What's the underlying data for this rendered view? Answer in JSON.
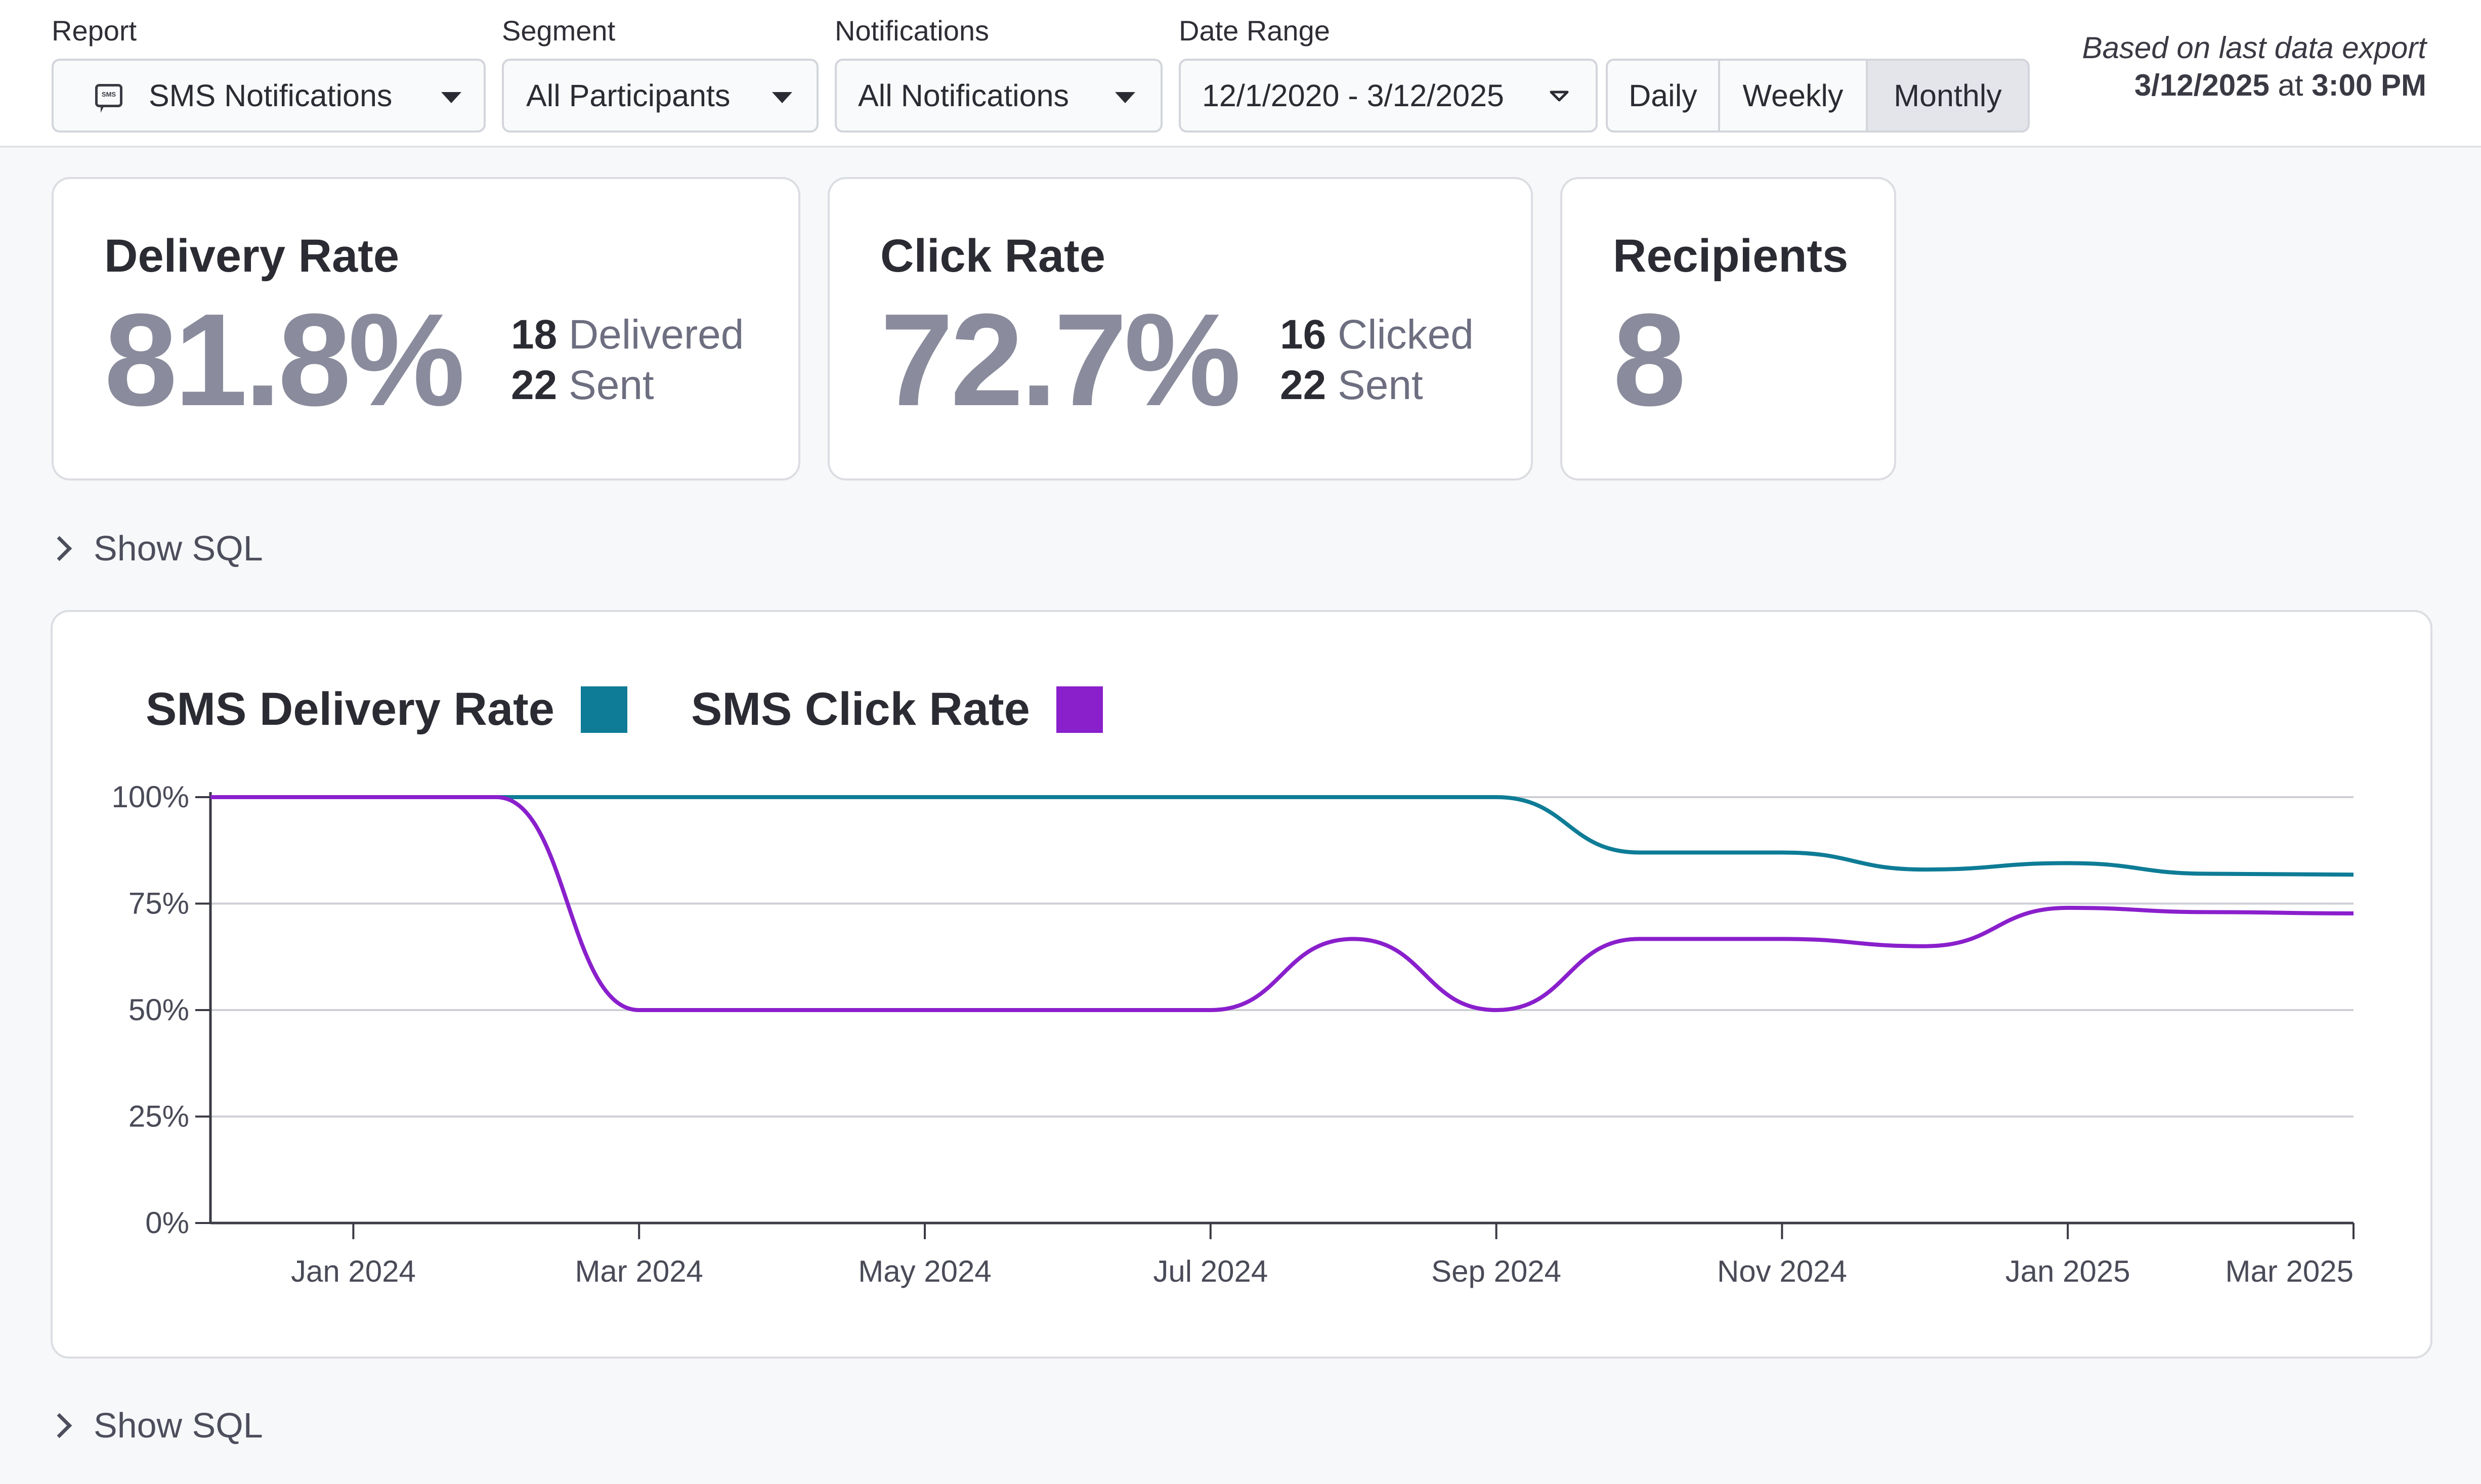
{
  "filters": {
    "report": {
      "label": "Report",
      "value": "SMS Notifications",
      "icon": "sms-icon"
    },
    "segment": {
      "label": "Segment",
      "value": "All Participants"
    },
    "notifications": {
      "label": "Notifications",
      "value": "All Notifications"
    },
    "date_range": {
      "label": "Date Range",
      "value": "12/1/2020 - 3/12/2025"
    },
    "granularity": {
      "options": [
        "Daily",
        "Weekly",
        "Monthly"
      ],
      "selected": "Monthly"
    }
  },
  "export_note": {
    "line1": "Based on last data export",
    "date": "3/12/2025",
    "at": "at",
    "time": "3:00 PM"
  },
  "cards": {
    "delivery": {
      "title": "Delivery Rate",
      "value": "81.8%",
      "count1": "18",
      "label1": "Delivered",
      "count2": "22",
      "label2": "Sent"
    },
    "click": {
      "title": "Click Rate",
      "value": "72.7%",
      "count1": "16",
      "label1": "Clicked",
      "count2": "22",
      "label2": "Sent"
    },
    "recipients": {
      "title": "Recipients",
      "value": "8"
    }
  },
  "show_sql": "Show SQL",
  "colors": {
    "delivery": "#0e7c96",
    "click": "#8a1fcc",
    "muted_value": "#8a8b9c"
  },
  "chart_data": {
    "type": "line",
    "title": "",
    "xlabel": "",
    "ylabel": "",
    "ylim": [
      0,
      100
    ],
    "y_ticks": [
      "0%",
      "25%",
      "50%",
      "75%",
      "100%"
    ],
    "x_ticks": [
      "Jan 2024",
      "Mar 2024",
      "May 2024",
      "Jul 2024",
      "Sep 2024",
      "Nov 2024",
      "Jan 2025",
      "Mar 2025"
    ],
    "x": [
      "Dec 2023",
      "Jan 2024",
      "Feb 2024",
      "Mar 2024",
      "Apr 2024",
      "May 2024",
      "Jun 2024",
      "Jul 2024",
      "Aug 2024",
      "Sep 2024",
      "Oct 2024",
      "Nov 2024",
      "Dec 2024",
      "Jan 2025",
      "Feb 2025",
      "Mar 2025"
    ],
    "series": [
      {
        "name": "SMS Delivery Rate",
        "color": "#0e7c96",
        "values": [
          100,
          100,
          100,
          100,
          100,
          100,
          100,
          100,
          100,
          100,
          87,
          87,
          83,
          84.5,
          82,
          81.8
        ]
      },
      {
        "name": "SMS Click Rate",
        "color": "#8a1fcc",
        "values": [
          100,
          100,
          100,
          50,
          50,
          50,
          50,
          50,
          66.7,
          50,
          66.7,
          66.7,
          65,
          74,
          73,
          72.7
        ]
      }
    ]
  }
}
